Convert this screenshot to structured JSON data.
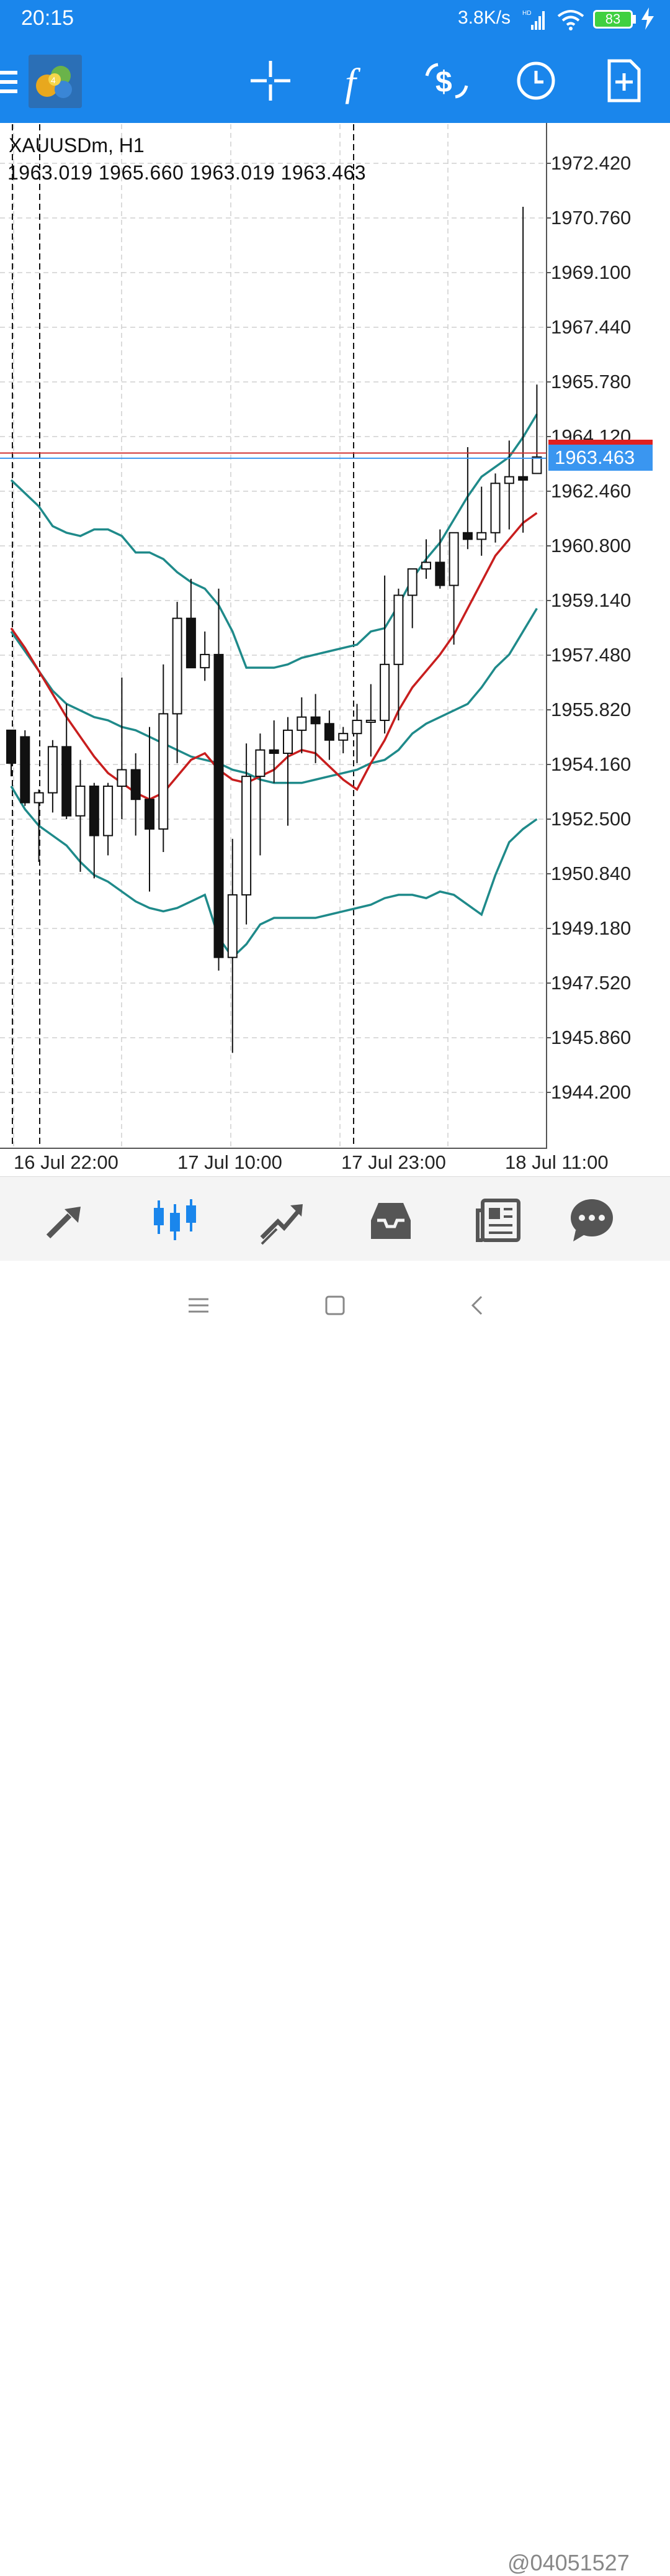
{
  "status_bar": {
    "time": "20:15",
    "speed": "3.8K/s",
    "battery": "83"
  },
  "toolbar": {
    "icons": [
      "menu-icon",
      "app-logo",
      "crosshair-icon",
      "function-icon",
      "trade-icon",
      "clock-icon",
      "new-document-icon"
    ]
  },
  "chart": {
    "symbol": "XAUUSDm, H1",
    "ohlc": "1963.019 1965.660 1963.019 1963.463",
    "current_price": "1963.463",
    "price_ticks": [
      "1972.420",
      "1970.760",
      "1969.100",
      "1967.440",
      "1965.780",
      "1964.120",
      "1962.460",
      "1960.800",
      "1959.140",
      "1957.480",
      "1955.820",
      "1954.160",
      "1952.500",
      "1950.840",
      "1949.180",
      "1947.520",
      "1945.860",
      "1944.200"
    ],
    "time_ticks": [
      "16 Jul 22:00",
      "17 Jul 10:00",
      "17 Jul 23:00",
      "18 Jul 11:00"
    ],
    "colors": {
      "bands": "#1f8a8a",
      "ma": "#c81e1e",
      "ask_line": "#d03030",
      "bid_line": "#3a96f0",
      "price_tag": "#3a96f0"
    }
  },
  "chart_data": {
    "type": "candlestick",
    "ylim": [
      1942.5,
      1974.5
    ],
    "candles": [
      {
        "o": 1955.2,
        "h": 1955.2,
        "l": 1953.8,
        "c": 1954.2
      },
      {
        "o": 1955.0,
        "h": 1955.2,
        "l": 1952.9,
        "c": 1953.0
      },
      {
        "o": 1953.0,
        "h": 1953.4,
        "l": 1951.2,
        "c": 1953.3
      },
      {
        "o": 1953.3,
        "h": 1954.9,
        "l": 1952.7,
        "c": 1954.7
      },
      {
        "o": 1954.7,
        "h": 1956.0,
        "l": 1952.5,
        "c": 1952.6
      },
      {
        "o": 1952.6,
        "h": 1954.3,
        "l": 1950.9,
        "c": 1953.5
      },
      {
        "o": 1953.5,
        "h": 1953.6,
        "l": 1950.7,
        "c": 1952.0
      },
      {
        "o": 1952.0,
        "h": 1953.6,
        "l": 1951.4,
        "c": 1953.5
      },
      {
        "o": 1953.5,
        "h": 1956.8,
        "l": 1952.5,
        "c": 1954.0
      },
      {
        "o": 1954.0,
        "h": 1954.5,
        "l": 1952.0,
        "c": 1953.1
      },
      {
        "o": 1953.1,
        "h": 1955.3,
        "l": 1950.3,
        "c": 1952.2
      },
      {
        "o": 1952.2,
        "h": 1957.2,
        "l": 1951.5,
        "c": 1955.7
      },
      {
        "o": 1955.7,
        "h": 1959.1,
        "l": 1954.2,
        "c": 1958.6
      },
      {
        "o": 1958.6,
        "h": 1959.8,
        "l": 1957.1,
        "c": 1957.1
      },
      {
        "o": 1957.1,
        "h": 1958.2,
        "l": 1956.7,
        "c": 1957.5
      },
      {
        "o": 1957.5,
        "h": 1959.5,
        "l": 1947.9,
        "c": 1948.3
      },
      {
        "o": 1948.3,
        "h": 1951.9,
        "l": 1945.4,
        "c": 1950.2
      },
      {
        "o": 1950.2,
        "h": 1954.8,
        "l": 1949.3,
        "c": 1953.8
      },
      {
        "o": 1953.8,
        "h": 1955.1,
        "l": 1951.4,
        "c": 1954.6
      },
      {
        "o": 1954.6,
        "h": 1955.5,
        "l": 1953.6,
        "c": 1954.5
      },
      {
        "o": 1954.5,
        "h": 1955.6,
        "l": 1952.3,
        "c": 1955.2
      },
      {
        "o": 1955.2,
        "h": 1956.2,
        "l": 1954.5,
        "c": 1955.6
      },
      {
        "o": 1955.6,
        "h": 1956.3,
        "l": 1954.2,
        "c": 1955.4
      },
      {
        "o": 1955.4,
        "h": 1955.8,
        "l": 1954.3,
        "c": 1954.9
      },
      {
        "o": 1954.9,
        "h": 1955.3,
        "l": 1954.5,
        "c": 1955.1
      },
      {
        "o": 1955.1,
        "h": 1956.0,
        "l": 1954.2,
        "c": 1955.5
      },
      {
        "o": 1955.5,
        "h": 1956.6,
        "l": 1954.4,
        "c": 1955.5
      },
      {
        "o": 1955.5,
        "h": 1959.9,
        "l": 1955.1,
        "c": 1957.2
      },
      {
        "o": 1957.2,
        "h": 1959.5,
        "l": 1955.5,
        "c": 1959.3
      },
      {
        "o": 1959.3,
        "h": 1960.1,
        "l": 1958.3,
        "c": 1960.1
      },
      {
        "o": 1960.1,
        "h": 1961.0,
        "l": 1959.8,
        "c": 1960.3
      },
      {
        "o": 1960.3,
        "h": 1961.3,
        "l": 1959.5,
        "c": 1959.6
      },
      {
        "o": 1959.6,
        "h": 1961.2,
        "l": 1957.8,
        "c": 1961.2
      },
      {
        "o": 1961.2,
        "h": 1963.8,
        "l": 1960.7,
        "c": 1961.0
      },
      {
        "o": 1961.0,
        "h": 1962.6,
        "l": 1960.5,
        "c": 1961.2
      },
      {
        "o": 1961.2,
        "h": 1963.0,
        "l": 1960.9,
        "c": 1962.7
      },
      {
        "o": 1962.7,
        "h": 1964.0,
        "l": 1961.3,
        "c": 1962.9
      },
      {
        "o": 1962.9,
        "h": 1971.1,
        "l": 1961.2,
        "c": 1962.8
      },
      {
        "o": 1963.0,
        "h": 1965.7,
        "l": 1963.0,
        "c": 1963.5
      }
    ],
    "upper_band": [
      1962.8,
      1962.4,
      1962.0,
      1961.4,
      1961.2,
      1961.1,
      1961.3,
      1961.3,
      1961.1,
      1960.6,
      1960.6,
      1960.4,
      1960.0,
      1959.7,
      1959.5,
      1959.0,
      1958.2,
      1957.1,
      1957.1,
      1957.1,
      1957.2,
      1957.4,
      1957.5,
      1957.6,
      1957.7,
      1957.8,
      1958.2,
      1958.3,
      1959.0,
      1959.8,
      1960.4,
      1960.9,
      1961.6,
      1962.3,
      1962.9,
      1963.2,
      1963.5,
      1964.1,
      1964.8
    ],
    "middle_band": [
      1958.2,
      1957.6,
      1957.0,
      1956.4,
      1956.0,
      1955.8,
      1955.6,
      1955.5,
      1955.3,
      1955.2,
      1955.0,
      1954.8,
      1954.6,
      1954.4,
      1954.3,
      1954.2,
      1954.0,
      1953.9,
      1953.7,
      1953.6,
      1953.6,
      1953.6,
      1953.7,
      1953.8,
      1953.9,
      1954.0,
      1954.2,
      1954.3,
      1954.6,
      1955.1,
      1955.4,
      1955.6,
      1955.8,
      1956.0,
      1956.5,
      1957.1,
      1957.5,
      1958.2,
      1958.9
    ],
    "lower_band": [
      1953.5,
      1952.8,
      1952.3,
      1952.0,
      1951.7,
      1951.2,
      1950.8,
      1950.6,
      1950.3,
      1950.0,
      1949.8,
      1949.7,
      1949.8,
      1950.0,
      1950.2,
      1948.9,
      1948.3,
      1948.7,
      1949.3,
      1949.5,
      1949.5,
      1949.5,
      1949.5,
      1949.6,
      1949.7,
      1949.8,
      1949.9,
      1950.1,
      1950.2,
      1950.2,
      1950.1,
      1950.3,
      1950.2,
      1949.9,
      1949.6,
      1950.8,
      1951.8,
      1952.2,
      1952.5
    ],
    "moving_average": [
      1958.3,
      1957.7,
      1957.0,
      1956.3,
      1955.6,
      1955.0,
      1954.4,
      1953.9,
      1953.6,
      1953.3,
      1953.1,
      1953.3,
      1953.8,
      1954.3,
      1954.5,
      1954.0,
      1953.7,
      1953.6,
      1953.8,
      1954.0,
      1954.4,
      1954.6,
      1954.5,
      1954.1,
      1953.7,
      1953.4,
      1954.2,
      1954.9,
      1955.8,
      1956.5,
      1957.0,
      1957.5,
      1958.1,
      1958.9,
      1959.7,
      1960.5,
      1961.0,
      1961.5,
      1961.8
    ],
    "ask_price": 1963.62,
    "bid_price": 1963.463,
    "vertical_separators": [
      0,
      2,
      25
    ],
    "xlabel": "",
    "ylabel": ""
  },
  "bottom_nav": {
    "items": [
      "quotes-icon",
      "chart-icon",
      "trade-icon",
      "history-icon",
      "news-icon",
      "chat-icon"
    ]
  },
  "system_nav": {
    "watermark": "@04051527"
  }
}
